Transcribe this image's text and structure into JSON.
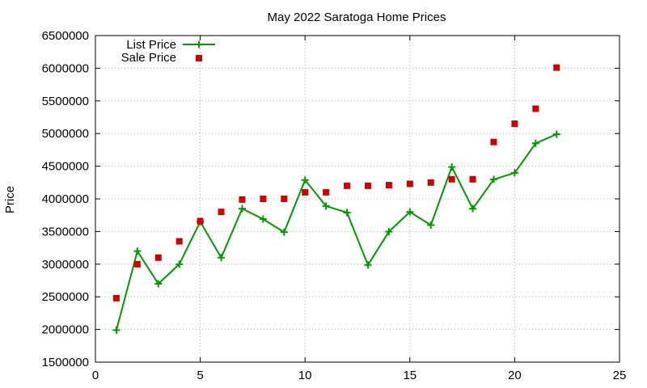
{
  "chart_data": {
    "type": "line",
    "title": "May 2022 Saratoga Home Prices",
    "xlabel": "",
    "ylabel": "Price",
    "xlim": [
      0,
      25
    ],
    "ylim": [
      1500000,
      6500000
    ],
    "x_ticks": [
      0,
      5,
      10,
      15,
      20,
      25
    ],
    "y_ticks": [
      1500000,
      2000000,
      2500000,
      3000000,
      3500000,
      4000000,
      4500000,
      5000000,
      5500000,
      6000000,
      6500000
    ],
    "grid": true,
    "legend_position": "top-left",
    "x": [
      1,
      2,
      3,
      4,
      5,
      6,
      7,
      8,
      9,
      10,
      11,
      12,
      13,
      14,
      15,
      16,
      17,
      18,
      19,
      20,
      21,
      22
    ],
    "series": [
      {
        "name": "List Price",
        "style": "linespoints",
        "marker": "plus",
        "color": "#009900",
        "values": [
          1990000,
          3200000,
          2700000,
          2999000,
          3650000,
          3100000,
          3850000,
          3690000,
          3490000,
          4288000,
          3890000,
          3790000,
          2988000,
          3498000,
          3800000,
          3598000,
          4488000,
          3850000,
          4298000,
          4398000,
          4850000,
          4990000
        ]
      },
      {
        "name": "Sale Price",
        "style": "points",
        "marker": "square",
        "color": "#cc0000",
        "values": [
          2480000,
          3000000,
          3100000,
          3350000,
          3660000,
          3800000,
          3990000,
          4000000,
          4000000,
          4100000,
          4100000,
          4200000,
          4200000,
          4210000,
          4230000,
          4250000,
          4300000,
          4300000,
          4870000,
          5150000,
          5380000,
          6010000
        ]
      }
    ]
  }
}
